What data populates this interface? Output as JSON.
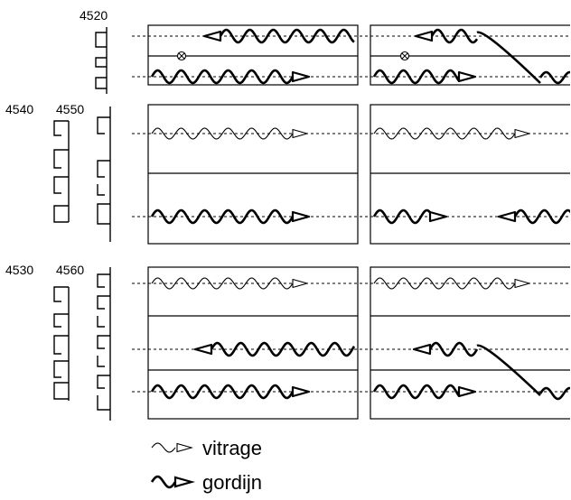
{
  "labels": {
    "row1": "4520",
    "row2_left": "4540",
    "row2_right": "4550",
    "row3_left": "4530",
    "row3_right": "4560"
  },
  "legend": {
    "vitrage": "vitrage",
    "gordijn": "gordijn"
  },
  "colors": {
    "line": "#000000",
    "background": "#ffffff"
  }
}
